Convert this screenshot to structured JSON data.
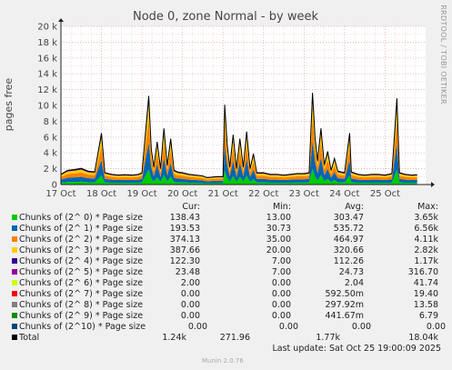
{
  "chart_data": {
    "type": "area",
    "title": "Node 0, zone Normal - by week",
    "ylabel": "pages free",
    "ylim": [
      0,
      20000
    ],
    "yticks": [
      {
        "v": 0,
        "label": "0"
      },
      {
        "v": 2000,
        "label": "2 k"
      },
      {
        "v": 4000,
        "label": "4 k"
      },
      {
        "v": 6000,
        "label": "6 k"
      },
      {
        "v": 8000,
        "label": "8 k"
      },
      {
        "v": 10000,
        "label": "10 k"
      },
      {
        "v": 12000,
        "label": "12 k"
      },
      {
        "v": 14000,
        "label": "14 k"
      },
      {
        "v": 16000,
        "label": "16 k"
      },
      {
        "v": 18000,
        "label": "18 k"
      },
      {
        "v": 20000,
        "label": "20 k"
      }
    ],
    "xrange": [
      "2025-10-17 00:00",
      "2025-10-26 00:00"
    ],
    "xticks": [
      {
        "date": "2025-10-17",
        "label": "17 Oct"
      },
      {
        "date": "2025-10-18",
        "label": "18 Oct"
      },
      {
        "date": "2025-10-19",
        "label": "19 Oct"
      },
      {
        "date": "2025-10-20",
        "label": "20 Oct"
      },
      {
        "date": "2025-10-21",
        "label": "21 Oct"
      },
      {
        "date": "2025-10-22",
        "label": "22 Oct"
      },
      {
        "date": "2025-10-23",
        "label": "23 Oct"
      },
      {
        "date": "2025-10-24",
        "label": "24 Oct"
      },
      {
        "date": "2025-10-25",
        "label": "25 Oct"
      }
    ],
    "grid": true,
    "stacked": true,
    "total_samples": [
      [
        "2025-10-17 00:00",
        1300
      ],
      [
        "2025-10-17 04:00",
        1800
      ],
      [
        "2025-10-17 08:00",
        1900
      ],
      [
        "2025-10-17 12:00",
        2050
      ],
      [
        "2025-10-17 16:00",
        1700
      ],
      [
        "2025-10-17 20:00",
        1600
      ],
      [
        "2025-10-18 00:00",
        6500
      ],
      [
        "2025-10-18 02:00",
        1500
      ],
      [
        "2025-10-18 06:00",
        1300
      ],
      [
        "2025-10-18 10:00",
        1200
      ],
      [
        "2025-10-18 14:00",
        1250
      ],
      [
        "2025-10-18 18:00",
        1200
      ],
      [
        "2025-10-18 22:00",
        1300
      ],
      [
        "2025-10-19 00:00",
        1500
      ],
      [
        "2025-10-19 04:00",
        11200
      ],
      [
        "2025-10-19 05:30",
        4500
      ],
      [
        "2025-10-19 07:00",
        2200
      ],
      [
        "2025-10-19 09:00",
        5400
      ],
      [
        "2025-10-19 11:00",
        2000
      ],
      [
        "2025-10-19 13:00",
        7100
      ],
      [
        "2025-10-19 15:00",
        2400
      ],
      [
        "2025-10-19 17:00",
        5800
      ],
      [
        "2025-10-19 19:00",
        1800
      ],
      [
        "2025-10-19 21:00",
        1600
      ],
      [
        "2025-10-20 00:00",
        1500
      ],
      [
        "2025-10-20 04:00",
        1300
      ],
      [
        "2025-10-20 08:00",
        1200
      ],
      [
        "2025-10-20 12:00",
        1100
      ],
      [
        "2025-10-20 14:00",
        900
      ],
      [
        "2025-10-20 16:00",
        900
      ],
      [
        "2025-10-20 20:00",
        1000
      ],
      [
        "2025-10-21 00:00",
        1000
      ],
      [
        "2025-10-21 01:00",
        10100
      ],
      [
        "2025-10-21 02:30",
        5000
      ],
      [
        "2025-10-21 04:00",
        2200
      ],
      [
        "2025-10-21 06:00",
        6300
      ],
      [
        "2025-10-21 08:00",
        2000
      ],
      [
        "2025-10-21 10:00",
        5800
      ],
      [
        "2025-10-21 12:00",
        2200
      ],
      [
        "2025-10-21 14:00",
        6700
      ],
      [
        "2025-10-21 16:00",
        2000
      ],
      [
        "2025-10-21 18:00",
        3900
      ],
      [
        "2025-10-21 20:00",
        1500
      ],
      [
        "2025-10-21 22:00",
        1500
      ],
      [
        "2025-10-22 00:00",
        1500
      ],
      [
        "2025-10-22 04:00",
        1300
      ],
      [
        "2025-10-22 08:00",
        1300
      ],
      [
        "2025-10-22 12:00",
        1200
      ],
      [
        "2025-10-22 16:00",
        1300
      ],
      [
        "2025-10-22 20:00",
        1400
      ],
      [
        "2025-10-23 00:00",
        1400
      ],
      [
        "2025-10-23 03:00",
        1500
      ],
      [
        "2025-10-23 05:00",
        11600
      ],
      [
        "2025-10-23 06:30",
        6000
      ],
      [
        "2025-10-23 08:00",
        3000
      ],
      [
        "2025-10-23 10:00",
        7100
      ],
      [
        "2025-10-23 12:00",
        2500
      ],
      [
        "2025-10-23 14:00",
        4200
      ],
      [
        "2025-10-23 16:00",
        1800
      ],
      [
        "2025-10-23 18:00",
        3300
      ],
      [
        "2025-10-23 20:00",
        1700
      ],
      [
        "2025-10-23 22:00",
        1600
      ],
      [
        "2025-10-24 00:00",
        1500
      ],
      [
        "2025-10-24 03:00",
        6500
      ],
      [
        "2025-10-24 04:00",
        1600
      ],
      [
        "2025-10-24 08:00",
        1300
      ],
      [
        "2025-10-24 12:00",
        1200
      ],
      [
        "2025-10-24 16:00",
        1300
      ],
      [
        "2025-10-24 20:00",
        1300
      ],
      [
        "2025-10-25 00:00",
        1200
      ],
      [
        "2025-10-25 04:00",
        1400
      ],
      [
        "2025-10-25 07:00",
        10900
      ],
      [
        "2025-10-25 08:30",
        1500
      ],
      [
        "2025-10-25 12:00",
        1300
      ],
      [
        "2025-10-25 16:00",
        1200
      ],
      [
        "2025-10-25 19:00",
        1240
      ]
    ],
    "legend_headers": {
      "cur": "Cur:",
      "min": "Min:",
      "avg": "Avg:",
      "max": "Max:"
    },
    "series": [
      {
        "name": "Chunks of (2^ 0) * Page size",
        "color": "#00cc00",
        "cur": "138.43",
        "min": "13.00",
        "avg": "303.47",
        "max": "3.65k"
      },
      {
        "name": "Chunks of (2^ 1) * Page size",
        "color": "#0066b3",
        "cur": "193.53",
        "min": "30.73",
        "avg": "535.72",
        "max": "6.56k"
      },
      {
        "name": "Chunks of (2^ 2) * Page size",
        "color": "#ff8000",
        "cur": "374.13",
        "min": "35.00",
        "avg": "464.97",
        "max": "4.11k"
      },
      {
        "name": "Chunks of (2^ 3) * Page size",
        "color": "#ffcc00",
        "cur": "387.66",
        "min": "20.00",
        "avg": "320.66",
        "max": "2.82k"
      },
      {
        "name": "Chunks of (2^ 4) * Page size",
        "color": "#330099",
        "cur": "122.30",
        "min": "7.00",
        "avg": "112.26",
        "max": "1.17k"
      },
      {
        "name": "Chunks of (2^ 5) * Page size",
        "color": "#990099",
        "cur": "23.48",
        "min": "7.00",
        "avg": "24.73",
        "max": "316.70"
      },
      {
        "name": "Chunks of (2^ 6) * Page size",
        "color": "#ccff00",
        "cur": "2.00",
        "min": "0.00",
        "avg": "2.04",
        "max": "41.74"
      },
      {
        "name": "Chunks of (2^ 7) * Page size",
        "color": "#ff0000",
        "cur": "0.00",
        "min": "0.00",
        "avg": "592.50m",
        "max": "19.40"
      },
      {
        "name": "Chunks of (2^ 8) * Page size",
        "color": "#808080",
        "cur": "0.00",
        "min": "0.00",
        "avg": "297.92m",
        "max": "13.58"
      },
      {
        "name": "Chunks of (2^ 9) * Page size",
        "color": "#008f00",
        "cur": "0.00",
        "min": "0.00",
        "avg": "441.67m",
        "max": "6.79"
      },
      {
        "name": "Chunks of (2^10) * Page size",
        "color": "#00487d",
        "cur": "0.00",
        "min": "0.00",
        "avg": "0.00",
        "max": "0.00"
      },
      {
        "name": "Total",
        "color": "#000000",
        "cur": "1.24k",
        "min": "271.96",
        "avg": "1.77k",
        "max": "18.04k"
      }
    ],
    "side_label": "RRDTOOL / TOBI OETIKER",
    "last_update": "Last update: Sat Oct 25 19:00:09 2025",
    "version": "Munin 2.0.76"
  }
}
